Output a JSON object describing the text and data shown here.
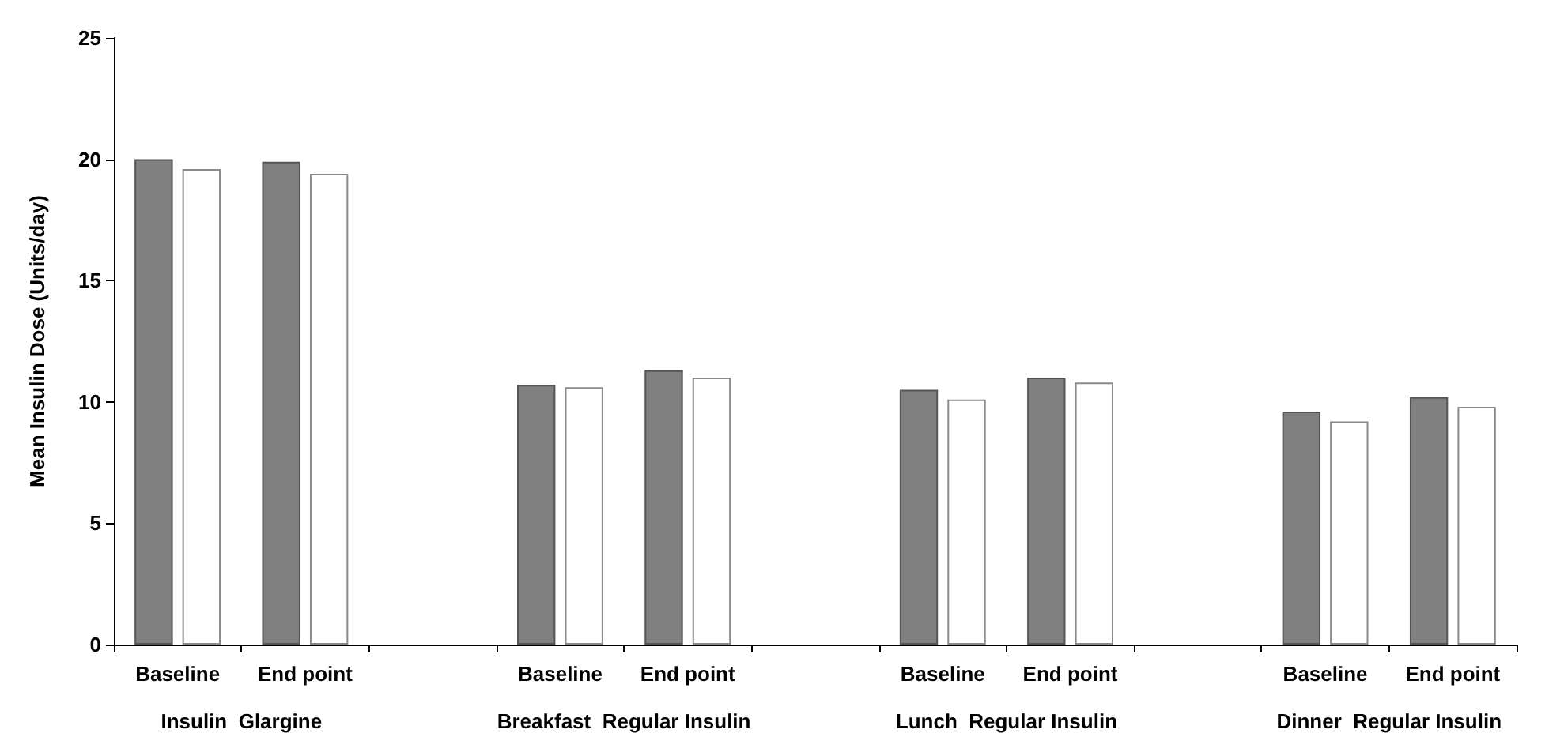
{
  "chart_data": {
    "type": "bar",
    "ylabel": "Mean Insulin Dose (Units/day)",
    "categories": [
      "Baseline",
      "End point",
      null,
      "Baseline",
      "End point",
      null,
      "Baseline",
      "End point",
      null,
      "Baseline",
      "End point"
    ],
    "series": [
      {
        "color": "#808080",
        "values": [
          20.0,
          19.9,
          null,
          10.7,
          11.3,
          null,
          10.5,
          11.0,
          null,
          9.6,
          10.2
        ]
      },
      {
        "color": "#ffffff",
        "values": [
          19.6,
          19.4,
          null,
          10.6,
          11.0,
          null,
          10.1,
          10.8,
          null,
          9.2,
          9.8
        ]
      }
    ],
    "ylim": [
      0,
      25
    ],
    "yticks": [
      0,
      5,
      10,
      15,
      20,
      25
    ],
    "grid": false,
    "annotations": [
      "Insulin  Glargine",
      "Breakfast  Regular Insulin",
      "Lunch  Regular Insulin",
      "Dinner  Regular Insulin"
    ]
  }
}
